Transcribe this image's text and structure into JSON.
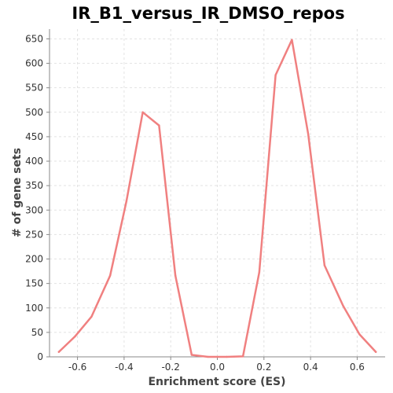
{
  "chart_data": {
    "type": "line",
    "title": "IR_B1_versus_IR_DMSO_repos",
    "xlabel": "Enrichment score (ES)",
    "ylabel": "# of gene sets",
    "xlim": [
      -0.72,
      0.72
    ],
    "ylim": [
      0,
      670
    ],
    "x_ticks": [
      -0.6,
      -0.4,
      -0.2,
      0.0,
      0.2,
      0.4,
      0.6
    ],
    "x_tick_labels": [
      "-0.6",
      "-0.4",
      "-0.2",
      "0.0",
      "0.2",
      "0.4",
      "0.6"
    ],
    "y_ticks": [
      0,
      50,
      100,
      150,
      200,
      250,
      300,
      350,
      400,
      450,
      500,
      550,
      600,
      650
    ],
    "y_tick_labels": [
      "0",
      "50",
      "100",
      "150",
      "200",
      "250",
      "300",
      "350",
      "400",
      "450",
      "500",
      "550",
      "600",
      "650"
    ],
    "grid": true,
    "series": [
      {
        "color": "#f08080",
        "x": [
          -0.68,
          -0.61,
          -0.54,
          -0.46,
          -0.39,
          -0.32,
          -0.25,
          -0.18,
          -0.11,
          -0.04,
          0.04,
          0.11,
          0.18,
          0.25,
          0.32,
          0.39,
          0.46,
          0.54,
          0.61,
          0.68
        ],
        "y": [
          10,
          42,
          82,
          166,
          318,
          500,
          473,
          166,
          4,
          0,
          0,
          1,
          173,
          576,
          648,
          455,
          187,
          104,
          46,
          10
        ]
      }
    ]
  }
}
